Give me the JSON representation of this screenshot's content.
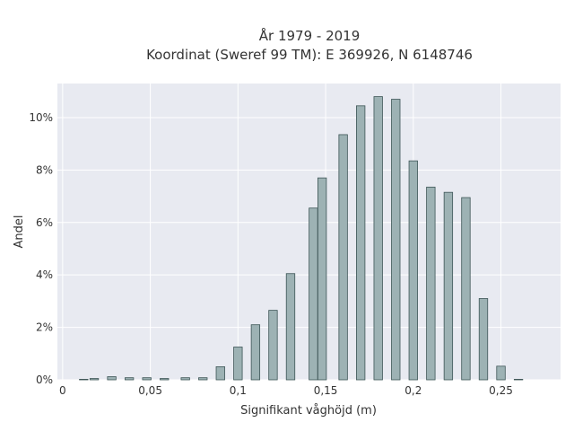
{
  "chart_data": {
    "type": "bar",
    "title": "År 1979 - 2019",
    "subtitle": "Koordinat (Sweref 99 TM): E 369926, N 6148746",
    "xlabel": "Signifikant våghöjd (m)",
    "ylabel": "Andel",
    "xlim": [
      -0.003,
      0.284
    ],
    "ylim": [
      0,
      11.3
    ],
    "x_ticks": [
      {
        "value": 0,
        "label": "0"
      },
      {
        "value": 0.05,
        "label": "0,05"
      },
      {
        "value": 0.1,
        "label": "0,1"
      },
      {
        "value": 0.15,
        "label": "0,15"
      },
      {
        "value": 0.2,
        "label": "0,2"
      },
      {
        "value": 0.25,
        "label": "0,25"
      }
    ],
    "y_ticks": [
      {
        "value": 0,
        "label": "0%"
      },
      {
        "value": 2,
        "label": "2%"
      },
      {
        "value": 4,
        "label": "4%"
      },
      {
        "value": 6,
        "label": "6%"
      },
      {
        "value": 8,
        "label": "8%"
      },
      {
        "value": 10,
        "label": "10%"
      }
    ],
    "grid": true,
    "bar_color": "#9db2b4",
    "bar_edge_color": "#3d5556",
    "background_color": "#e8eaf1",
    "x": [
      0.012,
      0.018,
      0.028,
      0.038,
      0.048,
      0.058,
      0.07,
      0.08,
      0.09,
      0.1,
      0.11,
      0.12,
      0.13,
      0.143,
      0.148,
      0.16,
      0.17,
      0.18,
      0.19,
      0.2,
      0.21,
      0.22,
      0.23,
      0.24,
      0.25,
      0.26
    ],
    "values": [
      0.02,
      0.05,
      0.12,
      0.08,
      0.08,
      0.05,
      0.08,
      0.08,
      0.5,
      1.25,
      2.1,
      2.65,
      4.05,
      6.55,
      7.7,
      9.35,
      10.45,
      10.8,
      10.7,
      8.35,
      7.35,
      7.15,
      6.95,
      3.1,
      0.52,
      0.02
    ]
  }
}
